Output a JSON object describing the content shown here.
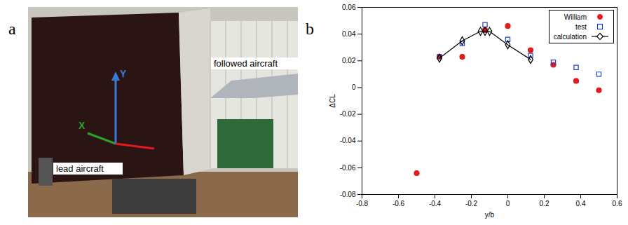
{
  "photo": {
    "panel": "a",
    "axes": [
      {
        "name": "X",
        "color": "#2ca02c"
      },
      {
        "name": "Y",
        "color": "#3a7bd5"
      }
    ],
    "labels": [
      "lead aircraft",
      "followed aircraft"
    ]
  },
  "chart_data": {
    "panel": "b",
    "type": "scatter",
    "xlabel": "y/b",
    "ylabel": "ΔCL",
    "xlim": [
      -0.8,
      0.6
    ],
    "xticks": [
      -0.8,
      -0.6,
      -0.4,
      -0.2,
      0,
      0.2,
      0.4,
      0.6
    ],
    "ylim": [
      -0.08,
      0.06
    ],
    "yticks": [
      -0.08,
      -0.06,
      -0.04,
      -0.02,
      0,
      0.02,
      0.04,
      0.06
    ],
    "grid": false,
    "legend": "upper right",
    "series": [
      {
        "name": "William",
        "color": "#e41a1c",
        "type": "scatter",
        "marker": "circle",
        "x": [
          -0.5,
          -0.375,
          -0.25,
          -0.125,
          0,
          0.125,
          0.25,
          0.375,
          0.5
        ],
        "values": [
          -0.064,
          0.023,
          0.023,
          0.043,
          0.046,
          0.028,
          0.017,
          0.005,
          -0.002
        ]
      },
      {
        "name": "test",
        "color": "#1f3fd0",
        "type": "scatter",
        "marker": "square",
        "x": [
          -0.375,
          -0.25,
          -0.125,
          0,
          0.125,
          0.25,
          0.375,
          0.5
        ],
        "values": [
          0.023,
          0.033,
          0.047,
          0.036,
          0.024,
          0.019,
          0.015,
          0.01
        ]
      },
      {
        "name": "calculation",
        "color": "#000000",
        "type": "line",
        "marker": "diamond",
        "x": [
          -0.375,
          -0.25,
          -0.15,
          -0.125,
          -0.1,
          0,
          0.125
        ],
        "values": [
          0.022,
          0.035,
          0.042,
          0.042,
          0.042,
          0.032,
          0.021
        ]
      }
    ]
  }
}
